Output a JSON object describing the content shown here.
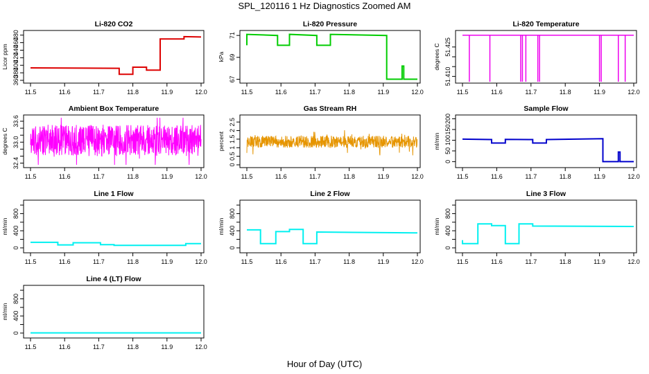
{
  "page": {
    "title": "SPL_120116  1 Hz Diagnostics Zoomed AM",
    "xlabel": "Hour of Day (UTC)"
  },
  "chart_data": [
    {
      "type": "line",
      "title": "Li-820 CO2",
      "ylabel": "Licor ppm",
      "xlim": [
        11.5,
        12.0
      ],
      "xticks": [
        11.5,
        11.6,
        11.7,
        11.8,
        11.9,
        12.0
      ],
      "ylim": [
        360,
        485
      ],
      "yticks": [
        360,
        380,
        400,
        420,
        440,
        460,
        480
      ],
      "color": "#dd0000",
      "x": [
        11.5,
        11.76,
        11.76,
        11.8,
        11.8,
        11.84,
        11.84,
        11.88,
        11.88,
        11.95,
        11.95,
        12.0
      ],
      "y": [
        393,
        392,
        376,
        376,
        395,
        395,
        387,
        387,
        470,
        470,
        476,
        475
      ]
    },
    {
      "type": "line",
      "title": "Li-820 Pressure",
      "ylabel": "kPa",
      "xlim": [
        11.5,
        12.0
      ],
      "xticks": [
        11.5,
        11.6,
        11.7,
        11.8,
        11.9,
        12.0
      ],
      "ylim": [
        66.9,
        71.2
      ],
      "yticks": [
        67,
        69,
        71
      ],
      "color": "#00cc00",
      "x": [
        11.5,
        11.5,
        11.59,
        11.59,
        11.625,
        11.625,
        11.705,
        11.705,
        11.745,
        11.745,
        11.91,
        11.91,
        11.955,
        11.955,
        11.96,
        11.96,
        12.0
      ],
      "y": [
        70.1,
        71.1,
        71.0,
        70.1,
        70.1,
        71.1,
        71.0,
        70.1,
        70.1,
        71.1,
        71.0,
        67.0,
        67.0,
        68.2,
        68.2,
        67.0,
        67.0
      ]
    },
    {
      "type": "line",
      "title": "Li-820 Temperature",
      "ylabel": "degrees C",
      "xlim": [
        11.5,
        12.0
      ],
      "xticks": [
        11.5,
        11.6,
        11.7,
        11.8,
        11.9,
        12.0
      ],
      "ylim": [
        51.408,
        51.432
      ],
      "yticks": [
        51.41,
        51.415,
        51.42,
        51.425
      ],
      "ytick_labels": [
        "51.410",
        "",
        "",
        "51.425"
      ],
      "color": "#ee00ee",
      "baseline": 51.431,
      "drops": [
        11.52,
        11.58,
        11.67,
        11.675,
        11.685,
        11.72,
        11.725,
        11.9,
        11.905,
        11.955,
        11.975
      ]
    },
    {
      "type": "line",
      "title": "Ambient Box Temperature",
      "ylabel": "degrees C",
      "xlim": [
        11.5,
        12.0
      ],
      "xticks": [
        11.5,
        11.6,
        11.7,
        11.8,
        11.9,
        12.0
      ],
      "ylim": [
        32.35,
        33.7
      ],
      "yticks": [
        32.4,
        32.6,
        32.8,
        33.0,
        33.2,
        33.4,
        33.6
      ],
      "ytick_labels": [
        "32.4",
        "",
        "",
        "33.0",
        "",
        "",
        "33.6"
      ],
      "color": "#ff00ff",
      "noise_center": 33.05,
      "noise_amplitude": 0.45
    },
    {
      "type": "line",
      "title": "Gas Stream RH",
      "ylabel": "percent",
      "xlim": [
        11.5,
        12.0
      ],
      "xticks": [
        11.5,
        11.6,
        11.7,
        11.8,
        11.9,
        12.0
      ],
      "ylim": [
        0,
        2.75
      ],
      "yticks": [
        0.0,
        0.5,
        1.0,
        1.5,
        2.0,
        2.5
      ],
      "color": "#e69500",
      "noise_center": 1.35,
      "noise_amplitude": 0.35
    },
    {
      "type": "line",
      "title": "Sample Flow",
      "ylabel": "ml/min",
      "xlim": [
        11.5,
        12.0
      ],
      "xticks": [
        11.5,
        11.6,
        11.7,
        11.8,
        11.9,
        12.0
      ],
      "ylim": [
        -15,
        205
      ],
      "yticks": [
        0,
        50,
        100,
        150,
        200
      ],
      "ytick_labels": [
        "0",
        "50",
        "100",
        "150",
        "200"
      ],
      "color": "#0000cc",
      "x": [
        11.5,
        11.585,
        11.585,
        11.625,
        11.625,
        11.705,
        11.705,
        11.745,
        11.745,
        11.91,
        11.91,
        11.955,
        11.955,
        11.96,
        11.96,
        12.0
      ],
      "y": [
        105,
        103,
        87,
        87,
        104,
        103,
        87,
        87,
        103,
        107,
        0,
        0,
        45,
        45,
        0,
        0
      ]
    },
    {
      "type": "line",
      "title": "Line 1 Flow",
      "ylabel": "ml/min",
      "xlim": [
        11.5,
        12.0
      ],
      "xticks": [
        11.5,
        11.6,
        11.7,
        11.8,
        11.9,
        12.0
      ],
      "ylim": [
        -50,
        1050
      ],
      "yticks": [
        0,
        200,
        400,
        600,
        800,
        1000
      ],
      "ytick_labels": [
        "0",
        "",
        "400",
        "",
        "800",
        ""
      ],
      "color": "#00f0f0",
      "x": [
        11.5,
        11.58,
        11.58,
        11.625,
        11.625,
        11.705,
        11.705,
        11.745,
        11.745,
        11.955,
        11.955,
        12.0
      ],
      "y": [
        130,
        130,
        70,
        70,
        120,
        120,
        75,
        75,
        60,
        60,
        100,
        100
      ]
    },
    {
      "type": "line",
      "title": "Line 2 Flow",
      "ylabel": "ml/min",
      "xlim": [
        11.5,
        12.0
      ],
      "xticks": [
        11.5,
        11.6,
        11.7,
        11.8,
        11.9,
        12.0
      ],
      "ylim": [
        -50,
        1050
      ],
      "yticks": [
        0,
        200,
        400,
        600,
        800,
        1000
      ],
      "ytick_labels": [
        "0",
        "",
        "400",
        "",
        "800",
        ""
      ],
      "color": "#00f0f0",
      "x": [
        11.5,
        11.54,
        11.54,
        11.585,
        11.585,
        11.625,
        11.625,
        11.665,
        11.665,
        11.705,
        11.705,
        12.0
      ],
      "y": [
        420,
        420,
        100,
        100,
        380,
        380,
        430,
        430,
        100,
        100,
        370,
        350
      ]
    },
    {
      "type": "line",
      "title": "Line 3 Flow",
      "ylabel": "ml/min",
      "xlim": [
        11.5,
        12.0
      ],
      "xticks": [
        11.5,
        11.6,
        11.7,
        11.8,
        11.9,
        12.0
      ],
      "ylim": [
        -50,
        1050
      ],
      "yticks": [
        0,
        200,
        400,
        600,
        800,
        1000
      ],
      "ytick_labels": [
        "0",
        "",
        "400",
        "",
        "800",
        ""
      ],
      "color": "#00f0f0",
      "x": [
        11.5,
        11.5,
        11.545,
        11.545,
        11.585,
        11.585,
        11.625,
        11.625,
        11.665,
        11.665,
        11.705,
        11.705,
        12.0
      ],
      "y": [
        180,
        100,
        100,
        560,
        560,
        520,
        520,
        100,
        100,
        560,
        560,
        510,
        500
      ]
    },
    {
      "type": "line",
      "title": "Line 4 (LT) Flow",
      "ylabel": "ml/min",
      "xlim": [
        11.5,
        12.0
      ],
      "xticks": [
        11.5,
        11.6,
        11.7,
        11.8,
        11.9,
        12.0
      ],
      "ylim": [
        -50,
        1050
      ],
      "yticks": [
        0,
        200,
        400,
        600,
        800,
        1000
      ],
      "ytick_labels": [
        "0",
        "",
        "400",
        "",
        "800",
        ""
      ],
      "color": "#00f0f0",
      "x": [
        11.5,
        12.0
      ],
      "y": [
        5,
        5
      ]
    }
  ]
}
